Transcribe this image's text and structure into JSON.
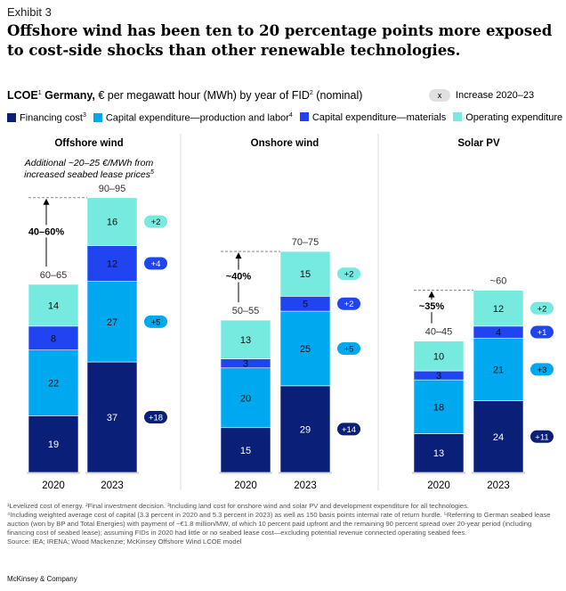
{
  "exhibit": "Exhibit 3",
  "title": "Offshore wind has been ten to 20 percentage points more exposed to cost-side shocks than other renewable technologies.",
  "subtitle": {
    "bold": "LCOE",
    "sup1": "1",
    "bold2": " Germany,",
    "rest": " € per megawatt hour (MWh) by year of FID",
    "sup2": "2",
    "rest2": " (nominal)"
  },
  "increase_legend": {
    "symbol": "x",
    "label": "Increase 2020–23"
  },
  "colors": {
    "financing": "#0a1f78",
    "capex_prod": "#00a8f0",
    "capex_mat": "#1f44f0",
    "opex": "#76eadf"
  },
  "chart_data": {
    "type": "bar",
    "stacked": true,
    "legend": [
      {
        "key": "financing",
        "label": "Financing cost",
        "sup": "3"
      },
      {
        "key": "capex_prod",
        "label": "Capital expenditure—production and labor",
        "sup": "4"
      },
      {
        "key": "capex_mat",
        "label": "Capital expenditure—materials",
        "sup": ""
      },
      {
        "key": "opex",
        "label": "Operating expenditure",
        "sup": ""
      }
    ],
    "panels": [
      {
        "title": "Offshore wind",
        "note": "Additional ~20–25 €/MWh from increased seabed lease prices",
        "note_sup": "5",
        "change": "40–60%",
        "bars": [
          {
            "year": "2020",
            "range": "60–65",
            "values": [
              19,
              22,
              8,
              14
            ]
          },
          {
            "year": "2023",
            "range": "90–95",
            "values": [
              37,
              27,
              12,
              16
            ]
          }
        ],
        "deltas": [
          "+18",
          "+5",
          "+4",
          "+2"
        ]
      },
      {
        "title": "Onshore wind",
        "note": "",
        "change": "~40%",
        "bars": [
          {
            "year": "2020",
            "range": "50–55",
            "values": [
              15,
              20,
              3,
              13
            ]
          },
          {
            "year": "2023",
            "range": "70–75",
            "values": [
              29,
              25,
              5,
              15
            ]
          }
        ],
        "deltas": [
          "+14",
          "+5",
          "+2",
          "+2"
        ]
      },
      {
        "title": "Solar PV",
        "note": "",
        "change": "~35%",
        "bars": [
          {
            "year": "2020",
            "range": "40–45",
            "values": [
              13,
              18,
              3,
              10
            ]
          },
          {
            "year": "2023",
            "range": "~60",
            "values": [
              24,
              21,
              4,
              12
            ]
          }
        ],
        "deltas": [
          "+11",
          "+3",
          "+1",
          "+2"
        ]
      }
    ]
  },
  "footnotes": [
    "¹Levelized cost of energy. ²Final investment decision. ³Including land cost for onshore wind and solar PV and development expenditure for all technologies.",
    "⁴Including weighted average cost of capital (3.3 percent in 2020 and 5.3 percent in 2023) as well as 150 basis points internal rate of return hurdle. ⁵Referring to German seabed lease auction (won by BP and Total Energies) with payment of ~€1.8 million/MW, of which 10 percent paid upfront and the remaining 90 percent spread over 20-year period (including financing cost of seabed lease); assuming FIDs in 2020 had little or no seabed lease cost—excluding potential revenue connected operating seabed fees.",
    "Source: IEA; IRENA; Wood Mackenzie; McKinsey Offshore Wind LCOE model"
  ],
  "brand": "McKinsey & Company"
}
